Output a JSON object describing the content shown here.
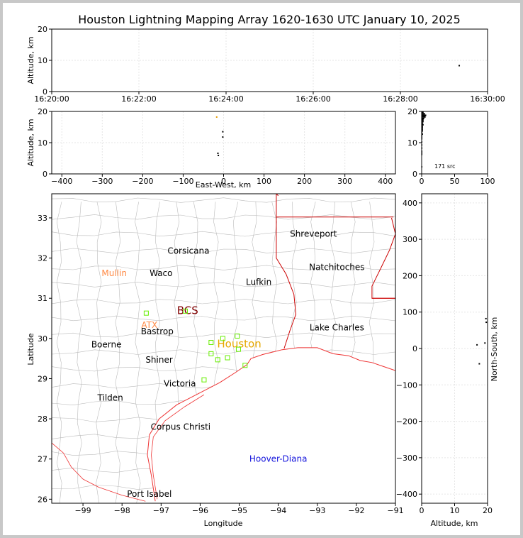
{
  "title": "Houston Lightning Mapping Array 1620-1630 UTC January 10, 2025",
  "colors": {
    "background": "#c8c8c8",
    "grid": "#e6e6e6",
    "county": "#bbbbbb",
    "state_border": "#cc0000",
    "coast": "#ee3333",
    "station": "#66ee00",
    "source": "#000000"
  },
  "chart_data": [
    {
      "id": "time_altitude",
      "type": "scatter",
      "xlabel": "",
      "ylabel": "Altitude, km",
      "x_ticks": [
        "16:20:00",
        "16:22:00",
        "16:24:00",
        "16:26:00",
        "16:28:00",
        "16:30:00"
      ],
      "xlim_minutes": [
        0,
        10
      ],
      "ylim": [
        0,
        20
      ],
      "y_ticks": [
        0,
        10,
        20
      ],
      "grid": true,
      "points": [
        {
          "t_min": 9.35,
          "alt": 8.3
        }
      ]
    },
    {
      "id": "east_west_altitude",
      "type": "scatter",
      "xlabel": "East-West, km",
      "ylabel": "Altitude, km",
      "xlim": [
        -425,
        425
      ],
      "x_ticks": [
        -400,
        -300,
        -200,
        -100,
        0,
        100,
        200,
        300,
        400
      ],
      "ylim": [
        0,
        20
      ],
      "y_ticks": [
        0,
        10,
        20
      ],
      "grid": true,
      "points": [
        {
          "x": -17,
          "alt": 18.2,
          "color": "#e69a00"
        },
        {
          "x": -2,
          "alt": 13.5
        },
        {
          "x": -2,
          "alt": 11.8
        },
        {
          "x": -14,
          "alt": 6.6
        },
        {
          "x": -13,
          "alt": 5.9
        }
      ]
    },
    {
      "id": "altitude_histogram",
      "type": "bar",
      "xlim": [
        0,
        100
      ],
      "x_ticks": [
        0,
        50,
        100
      ],
      "ylim": [
        0,
        20
      ],
      "y_ticks": [
        0,
        10,
        20
      ],
      "annotation": "171 src",
      "bins": [
        {
          "alt": 19.5,
          "count": 3
        },
        {
          "alt": 19.0,
          "count": 5
        },
        {
          "alt": 18.5,
          "count": 7
        },
        {
          "alt": 18.0,
          "count": 6
        },
        {
          "alt": 17.5,
          "count": 4
        },
        {
          "alt": 17.0,
          "count": 3
        },
        {
          "alt": 16.5,
          "count": 3
        },
        {
          "alt": 16.0,
          "count": 2
        },
        {
          "alt": 15.5,
          "count": 3
        },
        {
          "alt": 15.0,
          "count": 2
        },
        {
          "alt": 14.5,
          "count": 2
        },
        {
          "alt": 14.0,
          "count": 2
        },
        {
          "alt": 13.5,
          "count": 2
        },
        {
          "alt": 13.0,
          "count": 1
        },
        {
          "alt": 12.5,
          "count": 2
        },
        {
          "alt": 12.0,
          "count": 1
        },
        {
          "alt": 11.5,
          "count": 1
        },
        {
          "alt": 11.0,
          "count": 1
        },
        {
          "alt": 10.0,
          "count": 1
        },
        {
          "alt": 9.0,
          "count": 1
        },
        {
          "alt": 8.0,
          "count": 1
        },
        {
          "alt": 7.0,
          "count": 1
        },
        {
          "alt": 6.5,
          "count": 1
        },
        {
          "alt": 6.0,
          "count": 1
        },
        {
          "alt": 2.0,
          "count": 1
        }
      ]
    },
    {
      "id": "plan_view_map",
      "type": "scatter",
      "xlabel": "Longitude",
      "ylabel": "Latitude",
      "xlim": [
        -99.8,
        -91
      ],
      "x_ticks": [
        -99,
        -98,
        -97,
        -96,
        -95,
        -94,
        -93,
        -92,
        -91
      ],
      "ylim": [
        25.9,
        33.6
      ],
      "y_ticks": [
        26,
        27,
        28,
        29,
        30,
        31,
        32,
        33
      ],
      "cities": [
        {
          "name": "Shreveport",
          "lon": -93.1,
          "lat": 32.6,
          "color": "#000000",
          "size": 12
        },
        {
          "name": "Corsicana",
          "lon": -96.3,
          "lat": 32.18,
          "color": "#000000",
          "size": 12
        },
        {
          "name": "Natchitoches",
          "lon": -92.5,
          "lat": 31.77,
          "color": "#000000",
          "size": 12
        },
        {
          "name": "Mullin",
          "lon": -98.2,
          "lat": 31.62,
          "color": "#ff8a45",
          "size": 12
        },
        {
          "name": "Waco",
          "lon": -97.0,
          "lat": 31.62,
          "color": "#000000",
          "size": 12
        },
        {
          "name": "Lufkin",
          "lon": -94.5,
          "lat": 31.4,
          "color": "#000000",
          "size": 12
        },
        {
          "name": "BCS",
          "lon": -96.32,
          "lat": 30.68,
          "color": "#800000",
          "size": 15
        },
        {
          "name": "ATX",
          "lon": -97.3,
          "lat": 30.33,
          "color": "#ff8a45",
          "size": 12
        },
        {
          "name": "Bastrop",
          "lon": -97.1,
          "lat": 30.17,
          "color": "#000000",
          "size": 12
        },
        {
          "name": "Lake Charles",
          "lon": -92.5,
          "lat": 30.27,
          "color": "#000000",
          "size": 12
        },
        {
          "name": "Houston",
          "lon": -95.0,
          "lat": 29.85,
          "color": "#e6a800",
          "size": 15
        },
        {
          "name": "Boerne",
          "lon": -98.4,
          "lat": 29.85,
          "color": "#000000",
          "size": 12
        },
        {
          "name": "Shiner",
          "lon": -97.05,
          "lat": 29.47,
          "color": "#000000",
          "size": 12
        },
        {
          "name": "Victoria",
          "lon": -96.52,
          "lat": 28.88,
          "color": "#000000",
          "size": 12
        },
        {
          "name": "Tilden",
          "lon": -98.3,
          "lat": 28.52,
          "color": "#000000",
          "size": 12
        },
        {
          "name": "Corpus Christi",
          "lon": -96.5,
          "lat": 27.8,
          "color": "#000000",
          "size": 12
        },
        {
          "name": "Hoover-Diana",
          "lon": -94.0,
          "lat": 27.0,
          "color": "#1414dc",
          "size": 12
        },
        {
          "name": "Port Isabel",
          "lon": -97.3,
          "lat": 26.13,
          "color": "#000000",
          "size": 12
        }
      ],
      "stations": [
        {
          "lon": -97.38,
          "lat": 30.63
        },
        {
          "lon": -96.38,
          "lat": 30.68
        },
        {
          "lon": -95.42,
          "lat": 30.0
        },
        {
          "lon": -95.05,
          "lat": 30.06
        },
        {
          "lon": -95.72,
          "lat": 29.9
        },
        {
          "lon": -95.72,
          "lat": 29.62
        },
        {
          "lon": -95.55,
          "lat": 29.47
        },
        {
          "lon": -95.3,
          "lat": 29.52
        },
        {
          "lon": -94.85,
          "lat": 29.33
        },
        {
          "lon": -95.02,
          "lat": 29.73
        },
        {
          "lon": -95.9,
          "lat": 28.97
        }
      ]
    },
    {
      "id": "north_south_altitude",
      "type": "scatter",
      "xlabel": "Altitude, km",
      "ylabel": "North-South, km",
      "xlim": [
        0,
        20
      ],
      "x_ticks": [
        0,
        10,
        20
      ],
      "ylim": [
        -425,
        425
      ],
      "y_ticks": [
        -400,
        -300,
        -200,
        -100,
        0,
        100,
        200,
        300,
        400
      ],
      "grid": true,
      "points": [
        {
          "alt": 19.2,
          "y": 15
        },
        {
          "alt": 16.8,
          "y": 10
        },
        {
          "alt": 17.5,
          "y": -42
        },
        {
          "alt": 19.5,
          "y": 82
        },
        {
          "alt": 19.6,
          "y": 72
        }
      ]
    }
  ]
}
